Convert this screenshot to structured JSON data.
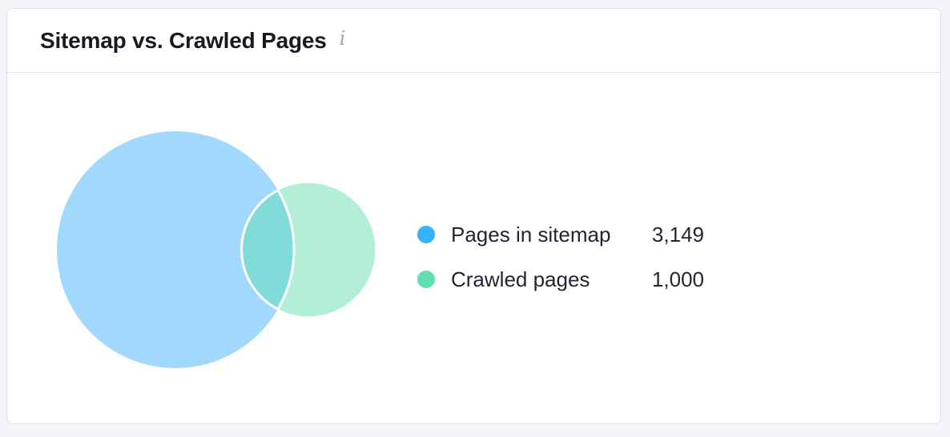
{
  "title": "Sitemap vs. Crawled Pages",
  "info_icon": "info-icon",
  "chart_data": {
    "type": "venn",
    "sets": [
      {
        "name": "Pages in sitemap",
        "value": 3149,
        "value_label": "3,149",
        "color": "#a3d8fd",
        "legend_color": "#36b2fb"
      },
      {
        "name": "Crawled pages",
        "value": 1000,
        "value_label": "1,000",
        "color": "#b3efd7",
        "legend_color": "#5fe0ae"
      }
    ],
    "overlap_color": "#80dbd9"
  }
}
